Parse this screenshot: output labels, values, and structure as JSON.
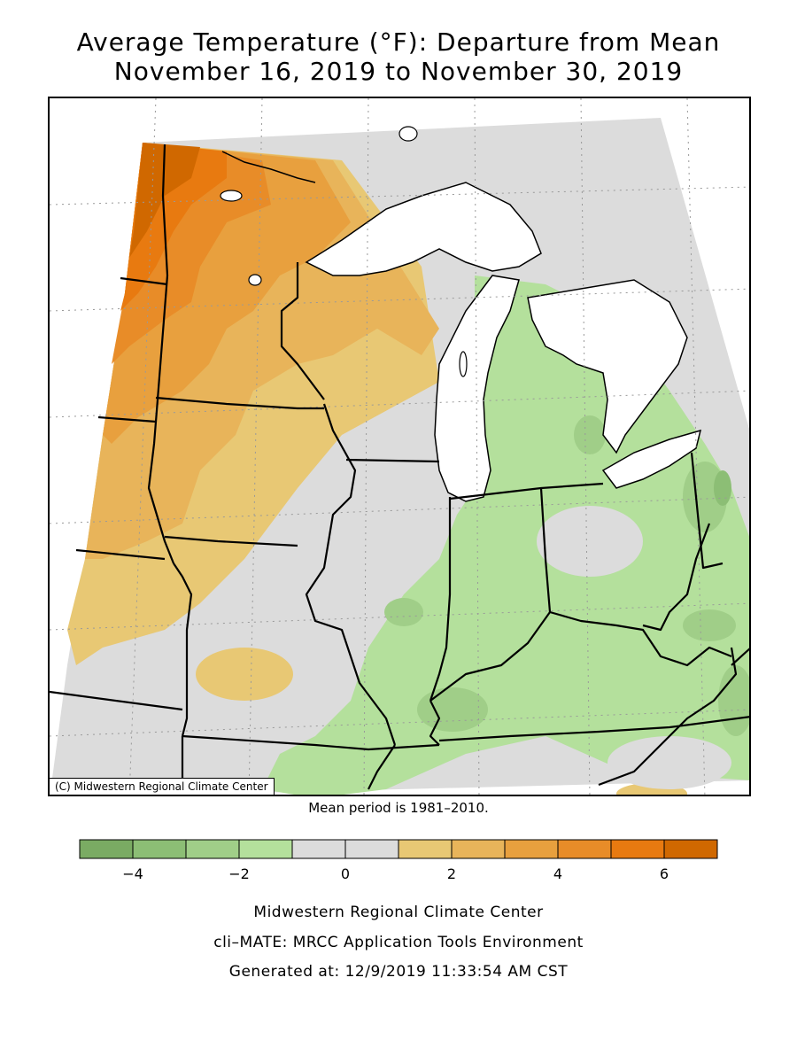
{
  "title": {
    "line1": "Average Temperature (°F): Departure from Mean",
    "line2": "November 16, 2019 to November 30, 2019"
  },
  "map": {
    "copyright": "(C) Midwestern Regional Climate Center",
    "colors": {
      "lake": "#ffffff",
      "border": "#000000",
      "grid": "#999999"
    }
  },
  "mean_note": "Mean period is 1981–2010.",
  "legend": {
    "bins": [
      {
        "from": -5,
        "to": -4,
        "color": "#7aab63"
      },
      {
        "from": -4,
        "to": -3,
        "color": "#8cbe75"
      },
      {
        "from": -3,
        "to": -2,
        "color": "#a0ce88"
      },
      {
        "from": -2,
        "to": -1,
        "color": "#b4e09c"
      },
      {
        "from": -1,
        "to": 0,
        "color": "#dcdcdc"
      },
      {
        "from": 0,
        "to": 1,
        "color": "#dcdcdc"
      },
      {
        "from": 1,
        "to": 2,
        "color": "#e8c874"
      },
      {
        "from": 2,
        "to": 3,
        "color": "#e8b45a"
      },
      {
        "from": 3,
        "to": 4,
        "color": "#e8a03e"
      },
      {
        "from": 4,
        "to": 5,
        "color": "#e88c28"
      },
      {
        "from": 5,
        "to": 6,
        "color": "#e87a10"
      },
      {
        "from": 6,
        "to": 7,
        "color": "#d06800"
      }
    ],
    "tick_labels": [
      "−4",
      "−2",
      "0",
      "2",
      "4",
      "6"
    ]
  },
  "footer": {
    "line1": "Midwestern Regional Climate Center",
    "line2": "cli–MATE: MRCC Application Tools Environment",
    "line3": "Generated at: 12/9/2019 11:33:54 AM CST"
  }
}
